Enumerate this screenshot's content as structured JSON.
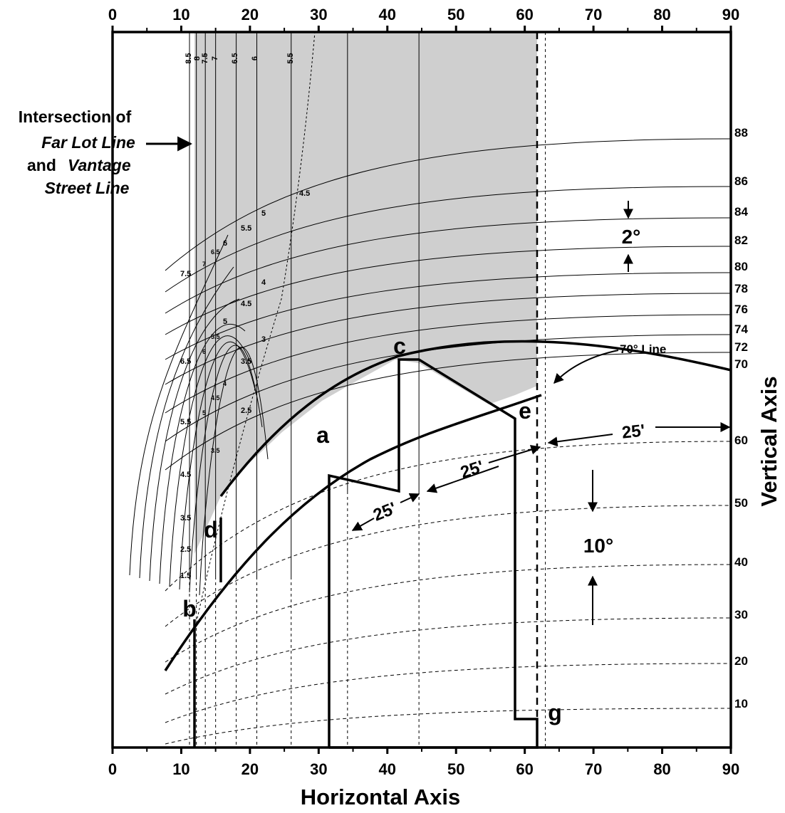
{
  "chart_data": {
    "type": "diagram",
    "xlabel": "Horizontal Axis",
    "ylabel": "Vertical Axis",
    "xlim": [
      0,
      90
    ],
    "x_ticks": [
      "0",
      "10",
      "20",
      "30",
      "40",
      "50",
      "60",
      "70",
      "80",
      "90"
    ],
    "right_labels_solid": [
      "88",
      "86",
      "84",
      "82",
      "80",
      "78",
      "76",
      "74",
      "72",
      "70"
    ],
    "right_labels_dashed": [
      "60",
      "50",
      "40",
      "30",
      "20",
      "10"
    ],
    "solid_curve_levels": [
      88,
      86,
      84,
      82,
      80,
      78,
      76,
      74,
      72,
      70
    ],
    "dashed_curve_levels": [
      60,
      50,
      40,
      30,
      20,
      10
    ],
    "top_column_labels": [
      "8.5",
      "8",
      "7.5",
      "7",
      "6.5",
      "6",
      "5.5"
    ],
    "column_x": [
      11.2,
      12.2,
      13.5,
      15.0,
      18.0,
      21.0,
      26.0
    ],
    "left_curve_labels": [
      "7.5",
      "6.5",
      "5.5",
      "4.5",
      "3.5",
      "2.5",
      "1.5"
    ],
    "inner_labels_upper": [
      "7",
      "6.5",
      "6",
      "5.5",
      "5",
      "4.5"
    ],
    "inner_labels_lower": [
      "5",
      "4.5",
      "4",
      "3.5",
      "3",
      "2.5"
    ],
    "inner_labels_small": [
      "6",
      "5.5",
      "5",
      "4.5",
      "4",
      "3.5"
    ],
    "points": {
      "a": "a",
      "b": "b",
      "c": "c",
      "d": "d",
      "e": "e",
      "g": "g"
    },
    "annotation_intersection": [
      "Intersection of",
      "Far Lot Line",
      "and",
      "Vantage",
      "Street Line"
    ],
    "annotation_70_line": "70° Line",
    "annotation_2deg": "2°",
    "annotation_10deg": "10°",
    "dimension_label": "25'"
  }
}
